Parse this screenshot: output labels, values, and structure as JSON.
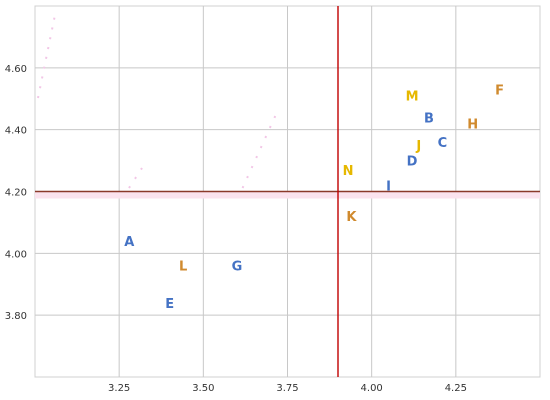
{
  "chart_data": {
    "type": "scatter",
    "title": "",
    "xlabel": "",
    "ylabel": "",
    "xlim": [
      3.0,
      4.5
    ],
    "ylim": [
      3.6,
      4.8
    ],
    "x_ticks": [
      3.25,
      3.5,
      3.75,
      4.0,
      4.25
    ],
    "x_tick_labels": [
      "3.25",
      "3.50",
      "3.75",
      "4.00",
      "4.25"
    ],
    "y_ticks": [
      3.8,
      4.0,
      4.2,
      4.4,
      4.6
    ],
    "y_tick_labels": [
      "3.80",
      "4.00",
      "4.20",
      "4.40",
      "4.60"
    ],
    "grid": true,
    "reference_lines": {
      "x": 3.9,
      "y": 4.2,
      "x_color": "#c00000",
      "y_color": "#8b3a2a"
    },
    "colors": {
      "blue": "#4472c4",
      "gold": "#e6b800",
      "orange": "#d08a2e"
    },
    "points": [
      {
        "label": "A",
        "x": 3.28,
        "y": 4.04,
        "color": "blue"
      },
      {
        "label": "B",
        "x": 4.17,
        "y": 4.44,
        "color": "blue"
      },
      {
        "label": "C",
        "x": 4.21,
        "y": 4.36,
        "color": "blue"
      },
      {
        "label": "D",
        "x": 4.12,
        "y": 4.3,
        "color": "blue"
      },
      {
        "label": "E",
        "x": 3.4,
        "y": 3.84,
        "color": "blue"
      },
      {
        "label": "F",
        "x": 4.38,
        "y": 4.53,
        "color": "orange"
      },
      {
        "label": "G",
        "x": 3.6,
        "y": 3.96,
        "color": "blue"
      },
      {
        "label": "H",
        "x": 4.3,
        "y": 4.42,
        "color": "orange"
      },
      {
        "label": "I",
        "x": 4.05,
        "y": 4.22,
        "color": "blue"
      },
      {
        "label": "J",
        "x": 4.14,
        "y": 4.35,
        "color": "gold"
      },
      {
        "label": "K",
        "x": 3.94,
        "y": 4.12,
        "color": "orange"
      },
      {
        "label": "L",
        "x": 3.44,
        "y": 3.96,
        "color": "orange"
      },
      {
        "label": "M",
        "x": 4.12,
        "y": 4.51,
        "color": "gold"
      },
      {
        "label": "N",
        "x": 3.93,
        "y": 4.27,
        "color": "gold"
      }
    ]
  }
}
